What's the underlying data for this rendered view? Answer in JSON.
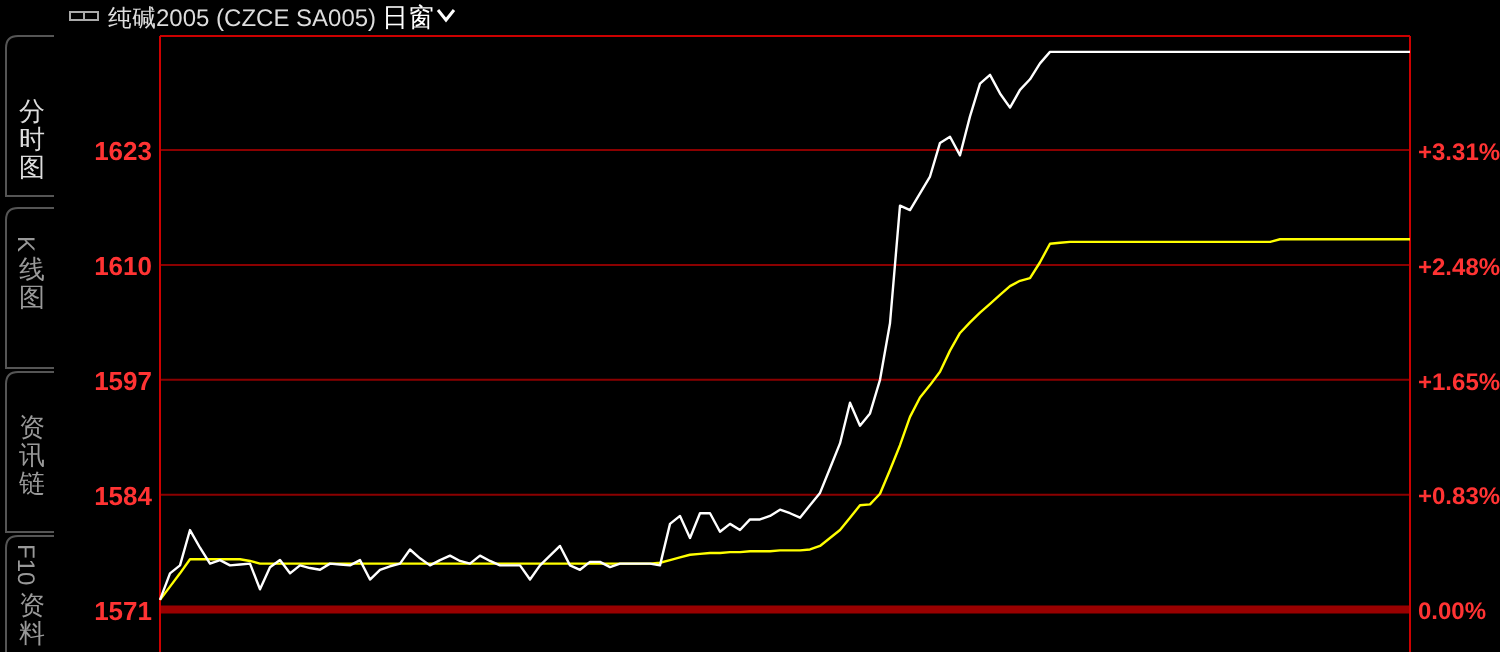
{
  "chart_data": {
    "type": "line",
    "title": "纯碱2005 (CZCE SA005)",
    "subtitle": "日窗",
    "annotations": [
      "分时图",
      "K线图",
      "资讯链",
      "F10资料"
    ],
    "categories": [
      null,
      null,
      null,
      null,
      null,
      null,
      null,
      null,
      null,
      null,
      null,
      null,
      null,
      null,
      null,
      null,
      null,
      null,
      null,
      null,
      null,
      null,
      null,
      null,
      null,
      null,
      null,
      null,
      null,
      null,
      null,
      null,
      null,
      null,
      null,
      null,
      null,
      null,
      null,
      null,
      null,
      null,
      null,
      null,
      null,
      null,
      null,
      null,
      null,
      null,
      null,
      null,
      null,
      null,
      null,
      null,
      null,
      null,
      null,
      null,
      null,
      null,
      null,
      null,
      null,
      null,
      null,
      null,
      null,
      null,
      null,
      null,
      null,
      null,
      null,
      null,
      null,
      null,
      null,
      null,
      null,
      null,
      null,
      null,
      null,
      null,
      null,
      null,
      null,
      null,
      null,
      null,
      null,
      null,
      null,
      null,
      null,
      null,
      null,
      null,
      null,
      null,
      null,
      null,
      null,
      null,
      null,
      null,
      null,
      null,
      null,
      null,
      null,
      null,
      null,
      null,
      null,
      null,
      null,
      null,
      null,
      null,
      null,
      null,
      null,
      null
    ],
    "ylim": [
      1566.2,
      1635.9
    ],
    "yticks": [
      1571,
      1584,
      1597,
      1610,
      1623
    ],
    "y2lim": [
      -0.31,
      4.13
    ],
    "y2ticks": [
      {
        "value": 0,
        "label": "0.00%"
      },
      {
        "value": 0.83,
        "label": "+0.83%"
      },
      {
        "value": 1.65,
        "label": "+1.65%"
      },
      {
        "value": 2.48,
        "label": "+2.48%"
      },
      {
        "value": 3.31,
        "label": "+3.31%"
      }
    ],
    "tick_labels": "y",
    "grid": "y",
    "ref_lines": [
      {
        "axis": "y",
        "value": 1571,
        "color": "#990000",
        "line_style": "solid"
      }
    ],
    "series": [
      {
        "color": "#ffffff",
        "values": [
          1572.1,
          1575.1,
          1576,
          1580,
          1578,
          1576.2,
          1576.6,
          1576,
          1576.1,
          1576.2,
          1573.3,
          1575.8,
          1576.6,
          1575.1,
          1576,
          1575.7,
          1575.5,
          1576.2,
          1576.1,
          1576,
          1576.6,
          1574.4,
          1575.5,
          1575.9,
          1576.2,
          1577.8,
          1576.8,
          1576,
          1576.6,
          1577.1,
          1576.5,
          1576.2,
          1577.1,
          1576.5,
          1576,
          1576,
          1576,
          1574.4,
          1576,
          1577.1,
          1578.2,
          1576,
          1575.5,
          1576.4,
          1576.4,
          1575.8,
          1576.2,
          1576.2,
          1576.2,
          1576.2,
          1576,
          1580.7,
          1581.6,
          1579.1,
          1581.9,
          1581.9,
          1579.8,
          1580.7,
          1580,
          1581.2,
          1581.2,
          1581.6,
          1582.3,
          1581.9,
          1581.4,
          1582.8,
          1584.2,
          1587,
          1589.8,
          1594.4,
          1591.8,
          1593.2,
          1597,
          1603.4,
          1616.7,
          1616.2,
          1618.1,
          1620,
          1623.8,
          1624.5,
          1622.4,
          1626.8,
          1630.5,
          1631.5,
          1629.4,
          1627.8,
          1629.8,
          1631,
          1632.8,
          1634.1,
          1634.1,
          1634.1,
          1634.1,
          1634.1,
          1634.1,
          1634.1,
          1634.1,
          1634.1,
          1634.1,
          1634.1,
          1634.1,
          1634.1,
          1634.1,
          1634.1,
          1634.1,
          1634.1,
          1634.1,
          1634.1,
          1634.1,
          1634.1,
          1634.1,
          1634.1,
          1634.1,
          1634.1,
          1634.1,
          1634.1,
          1634.1,
          1634.1,
          1634.1,
          1634.1,
          1634.1,
          1634.1,
          1634.1,
          1634.1,
          1634.1,
          1634.1
        ]
      },
      {
        "color": "#ffff00",
        "values": [
          1572.1,
          1573.6,
          1575.1,
          1576.7,
          1576.7,
          1576.7,
          1576.7,
          1576.7,
          1576.7,
          1576.5,
          1576.2,
          1576.2,
          1576.2,
          1576.2,
          1576.2,
          1576.2,
          1576.2,
          1576.2,
          1576.2,
          1576.2,
          1576.2,
          1576.2,
          1576.2,
          1576.2,
          1576.2,
          1576.2,
          1576.2,
          1576.2,
          1576.2,
          1576.2,
          1576.2,
          1576.2,
          1576.2,
          1576.2,
          1576.2,
          1576.2,
          1576.2,
          1576.2,
          1576.2,
          1576.2,
          1576.2,
          1576.2,
          1576.2,
          1576.2,
          1576.2,
          1576.2,
          1576.2,
          1576.2,
          1576.2,
          1576.2,
          1576.3,
          1576.6,
          1576.9,
          1577.2,
          1577.3,
          1577.4,
          1577.4,
          1577.5,
          1577.5,
          1577.6,
          1577.6,
          1577.6,
          1577.7,
          1577.7,
          1577.7,
          1577.8,
          1578.2,
          1579.1,
          1580,
          1581.4,
          1582.8,
          1582.9,
          1584.1,
          1586.8,
          1589.6,
          1592.8,
          1595,
          1596.4,
          1597.9,
          1600.3,
          1602.3,
          1603.5,
          1604.6,
          1605.6,
          1606.6,
          1607.6,
          1608.2,
          1608.5,
          1610.3,
          1612.4,
          1612.5,
          1612.6,
          1612.6,
          1612.6,
          1612.6,
          1612.6,
          1612.6,
          1612.6,
          1612.6,
          1612.6,
          1612.6,
          1612.6,
          1612.6,
          1612.6,
          1612.6,
          1612.6,
          1612.6,
          1612.6,
          1612.6,
          1612.6,
          1612.6,
          1612.6,
          1612.9,
          1612.9,
          1612.9,
          1612.9,
          1612.9,
          1612.9,
          1612.9,
          1612.9,
          1612.9,
          1612.9,
          1612.9,
          1612.9,
          1612.9,
          1612.9
        ]
      }
    ]
  }
}
